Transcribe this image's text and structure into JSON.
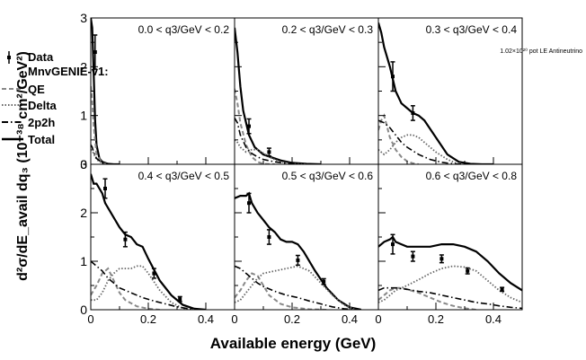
{
  "figure": {
    "ylabel": "d²σ/dE_avail dq₃ (10⁻³⁸ cm²/GeV²)",
    "xlabel": "Available energy (GeV)",
    "pot_note": "1.02×10²⁰ pot LE Antineutrino"
  },
  "legend": {
    "data": "Data",
    "model": "MnvGENIE-v1:",
    "qe": "QE",
    "delta": "Delta",
    "twop2h": "2p2h",
    "total": "Total"
  },
  "colors": {
    "qe": "#888888",
    "delta": "#666666",
    "twop2h": "#000000",
    "total": "#000000",
    "data": "#000000"
  },
  "chart_data": [
    {
      "type": "line",
      "panel_label": "0.0 < q3/GeV < 0.2",
      "xlim": [
        0,
        0.5
      ],
      "ylim": [
        0,
        3
      ],
      "xticks": [
        "0",
        "0.2",
        "0.4"
      ],
      "yticks": [
        "0",
        "1",
        "2",
        "3"
      ],
      "series": [
        {
          "name": "Total",
          "x": [
            0.0,
            0.005,
            0.01,
            0.015,
            0.02,
            0.03,
            0.04,
            0.06,
            0.08,
            0.1
          ],
          "y": [
            3.0,
            2.8,
            1.9,
            0.9,
            0.4,
            0.12,
            0.05,
            0.01,
            0.0,
            0.0
          ]
        },
        {
          "name": "QE",
          "x": [
            0.0,
            0.005,
            0.01,
            0.02,
            0.04,
            0.06
          ],
          "y": [
            1.6,
            1.3,
            0.8,
            0.2,
            0.02,
            0.0
          ]
        },
        {
          "name": "Delta",
          "x": [
            0.0,
            0.005,
            0.01,
            0.02,
            0.04,
            0.06
          ],
          "y": [
            0.3,
            0.28,
            0.22,
            0.1,
            0.02,
            0.0
          ]
        },
        {
          "name": "2p2h",
          "x": [
            0.0,
            0.005,
            0.01,
            0.02,
            0.04,
            0.06
          ],
          "y": [
            0.4,
            0.35,
            0.25,
            0.12,
            0.03,
            0.0
          ]
        }
      ],
      "data_points": {
        "x": [
          0.015
        ],
        "y": [
          2.3
        ],
        "err": [
          0.35
        ]
      }
    },
    {
      "type": "line",
      "panel_label": "0.2 < q3/GeV < 0.3",
      "xlim": [
        0,
        0.5
      ],
      "ylim": [
        0,
        3
      ],
      "xticks": [
        "0",
        "0.2",
        "0.4"
      ],
      "yticks": [],
      "series": [
        {
          "name": "Total",
          "x": [
            0.0,
            0.01,
            0.02,
            0.03,
            0.05,
            0.07,
            0.1,
            0.13,
            0.16,
            0.2,
            0.25,
            0.3
          ],
          "y": [
            2.8,
            2.3,
            1.6,
            1.1,
            0.6,
            0.35,
            0.2,
            0.14,
            0.08,
            0.03,
            0.01,
            0.0
          ]
        },
        {
          "name": "QE",
          "x": [
            0.0,
            0.01,
            0.02,
            0.04,
            0.06,
            0.08,
            0.1,
            0.14
          ],
          "y": [
            1.55,
            1.25,
            0.85,
            0.4,
            0.15,
            0.05,
            0.01,
            0.0
          ]
        },
        {
          "name": "Delta",
          "x": [
            0.0,
            0.01,
            0.02,
            0.04,
            0.06,
            0.08,
            0.1,
            0.13,
            0.16,
            0.2,
            0.25
          ],
          "y": [
            0.5,
            0.45,
            0.35,
            0.25,
            0.3,
            0.3,
            0.23,
            0.12,
            0.05,
            0.01,
            0.0
          ]
        },
        {
          "name": "2p2h",
          "x": [
            0.0,
            0.01,
            0.02,
            0.04,
            0.06,
            0.08,
            0.1,
            0.14,
            0.18,
            0.22
          ],
          "y": [
            0.95,
            0.85,
            0.6,
            0.35,
            0.22,
            0.15,
            0.1,
            0.05,
            0.02,
            0.0
          ]
        }
      ],
      "data_points": {
        "x": [
          0.05,
          0.12
        ],
        "y": [
          0.78,
          0.25
        ],
        "err": [
          0.15,
          0.08
        ]
      }
    },
    {
      "type": "line",
      "panel_label": "0.3 < q3/GeV < 0.4",
      "xlim": [
        0,
        0.5
      ],
      "ylim": [
        0,
        3
      ],
      "xticks": [
        "0",
        "0.2",
        "0.4"
      ],
      "yticks": [],
      "series": [
        {
          "name": "Total",
          "x": [
            0.0,
            0.01,
            0.02,
            0.04,
            0.06,
            0.08,
            0.1,
            0.12,
            0.14,
            0.16,
            0.2,
            0.24,
            0.28,
            0.32,
            0.36,
            0.4
          ],
          "y": [
            2.9,
            2.7,
            2.4,
            2.0,
            1.5,
            1.25,
            1.15,
            1.05,
            1.0,
            0.9,
            0.55,
            0.2,
            0.05,
            0.01,
            0.0,
            0.0
          ]
        },
        {
          "name": "QE",
          "x": [
            0.0,
            0.01,
            0.02,
            0.04,
            0.06,
            0.08,
            0.1,
            0.12,
            0.14
          ],
          "y": [
            0.7,
            0.9,
            1.0,
            0.55,
            0.3,
            0.15,
            0.06,
            0.02,
            0.0
          ]
        },
        {
          "name": "Delta",
          "x": [
            0.0,
            0.01,
            0.02,
            0.04,
            0.06,
            0.08,
            0.1,
            0.12,
            0.14,
            0.16,
            0.2,
            0.24,
            0.28
          ],
          "y": [
            0.3,
            0.25,
            0.2,
            0.3,
            0.45,
            0.55,
            0.6,
            0.6,
            0.55,
            0.45,
            0.25,
            0.1,
            0.0
          ]
        },
        {
          "name": "2p2h",
          "x": [
            0.0,
            0.02,
            0.04,
            0.06,
            0.08,
            0.1,
            0.14,
            0.18,
            0.22,
            0.26,
            0.3
          ],
          "y": [
            0.9,
            0.85,
            0.75,
            0.6,
            0.45,
            0.35,
            0.2,
            0.1,
            0.04,
            0.01,
            0.0
          ]
        }
      ],
      "data_points": {
        "x": [
          0.05,
          0.12
        ],
        "y": [
          1.8,
          1.05
        ],
        "err": [
          0.3,
          0.15
        ]
      }
    },
    {
      "type": "line",
      "panel_label": "0.4 < q3/GeV < 0.5",
      "xlim": [
        0,
        0.5
      ],
      "ylim": [
        0,
        3
      ],
      "xticks": [
        "0",
        "0.2",
        "0.4"
      ],
      "yticks": [
        "0",
        "1",
        "2",
        "3"
      ],
      "series": [
        {
          "name": "Total",
          "x": [
            0.0,
            0.01,
            0.02,
            0.03,
            0.04,
            0.05,
            0.06,
            0.08,
            0.1,
            0.12,
            0.14,
            0.16,
            0.18,
            0.2,
            0.24,
            0.28,
            0.32,
            0.36,
            0.4
          ],
          "y": [
            2.8,
            2.6,
            2.6,
            2.5,
            2.4,
            2.2,
            2.1,
            1.9,
            1.7,
            1.55,
            1.5,
            1.35,
            1.3,
            1.05,
            0.6,
            0.3,
            0.1,
            0.02,
            0.0
          ]
        },
        {
          "name": "QE",
          "x": [
            0.0,
            0.02,
            0.04,
            0.06,
            0.08,
            0.1,
            0.12,
            0.16,
            0.2,
            0.24
          ],
          "y": [
            0.3,
            0.5,
            0.75,
            0.85,
            0.6,
            0.35,
            0.2,
            0.07,
            0.02,
            0.0
          ]
        },
        {
          "name": "Delta",
          "x": [
            0.0,
            0.02,
            0.04,
            0.06,
            0.08,
            0.1,
            0.12,
            0.14,
            0.16,
            0.18,
            0.2,
            0.24,
            0.28,
            0.32,
            0.36
          ],
          "y": [
            0.2,
            0.2,
            0.35,
            0.6,
            0.75,
            0.85,
            0.85,
            0.85,
            0.9,
            0.9,
            0.75,
            0.4,
            0.15,
            0.03,
            0.0
          ]
        },
        {
          "name": "2p2h",
          "x": [
            0.0,
            0.02,
            0.04,
            0.06,
            0.08,
            0.1,
            0.14,
            0.18,
            0.22,
            0.26,
            0.3,
            0.34,
            0.38
          ],
          "y": [
            1.0,
            0.9,
            0.8,
            0.65,
            0.55,
            0.45,
            0.35,
            0.25,
            0.18,
            0.12,
            0.06,
            0.02,
            0.0
          ]
        }
      ],
      "data_points": {
        "x": [
          0.05,
          0.12,
          0.22,
          0.31
        ],
        "y": [
          2.5,
          1.45,
          0.75,
          0.22
        ],
        "err": [
          0.2,
          0.15,
          0.1,
          0.05
        ]
      }
    },
    {
      "type": "line",
      "panel_label": "0.5 < q3/GeV < 0.6",
      "xlim": [
        0,
        0.5
      ],
      "ylim": [
        0,
        3
      ],
      "xticks": [
        "0",
        "0.2",
        "0.4"
      ],
      "yticks": [],
      "series": [
        {
          "name": "Total",
          "x": [
            0.0,
            0.02,
            0.04,
            0.05,
            0.06,
            0.08,
            0.1,
            0.12,
            0.14,
            0.16,
            0.18,
            0.2,
            0.22,
            0.24,
            0.28,
            0.32,
            0.36,
            0.4,
            0.44
          ],
          "y": [
            2.3,
            2.35,
            2.35,
            2.4,
            2.2,
            2.0,
            1.85,
            1.7,
            1.6,
            1.45,
            1.4,
            1.4,
            1.35,
            1.2,
            0.8,
            0.45,
            0.2,
            0.05,
            0.0
          ]
        },
        {
          "name": "QE",
          "x": [
            0.0,
            0.02,
            0.04,
            0.06,
            0.08,
            0.1,
            0.12,
            0.16,
            0.2,
            0.26,
            0.32
          ],
          "y": [
            0.25,
            0.4,
            0.6,
            0.75,
            0.7,
            0.5,
            0.3,
            0.12,
            0.05,
            0.01,
            0.0
          ]
        },
        {
          "name": "Delta",
          "x": [
            0.0,
            0.02,
            0.04,
            0.06,
            0.08,
            0.1,
            0.14,
            0.18,
            0.22,
            0.26,
            0.3,
            0.34,
            0.38,
            0.42
          ],
          "y": [
            0.15,
            0.2,
            0.35,
            0.5,
            0.65,
            0.75,
            0.8,
            0.85,
            0.9,
            0.8,
            0.55,
            0.3,
            0.1,
            0.0
          ]
        },
        {
          "name": "2p2h",
          "x": [
            0.0,
            0.02,
            0.04,
            0.06,
            0.08,
            0.1,
            0.14,
            0.18,
            0.22,
            0.26,
            0.3,
            0.34,
            0.38,
            0.42
          ],
          "y": [
            0.9,
            0.85,
            0.75,
            0.65,
            0.55,
            0.48,
            0.38,
            0.3,
            0.25,
            0.18,
            0.12,
            0.06,
            0.02,
            0.0
          ]
        }
      ],
      "data_points": {
        "x": [
          0.05,
          0.12,
          0.22,
          0.31
        ],
        "y": [
          2.2,
          1.5,
          1.02,
          0.58
        ],
        "err": [
          0.2,
          0.15,
          0.1,
          0.06
        ]
      }
    },
    {
      "type": "line",
      "panel_label": "0.6 < q3/GeV < 0.8",
      "xlim": [
        0,
        0.5
      ],
      "ylim": [
        0,
        3
      ],
      "xticks": [
        "0",
        "0.2",
        "0.4"
      ],
      "yticks": [],
      "series": [
        {
          "name": "Total",
          "x": [
            0.0,
            0.02,
            0.04,
            0.05,
            0.06,
            0.08,
            0.1,
            0.14,
            0.18,
            0.22,
            0.26,
            0.3,
            0.34,
            0.38,
            0.42,
            0.46,
            0.5
          ],
          "y": [
            1.3,
            1.4,
            1.45,
            1.5,
            1.4,
            1.35,
            1.3,
            1.3,
            1.3,
            1.35,
            1.35,
            1.3,
            1.2,
            1.0,
            0.75,
            0.55,
            0.4
          ]
        },
        {
          "name": "QE",
          "x": [
            0.0,
            0.02,
            0.04,
            0.06,
            0.08,
            0.1,
            0.14,
            0.18,
            0.22,
            0.26,
            0.3,
            0.34
          ],
          "y": [
            0.2,
            0.3,
            0.4,
            0.45,
            0.45,
            0.42,
            0.35,
            0.25,
            0.15,
            0.08,
            0.03,
            0.0
          ]
        },
        {
          "name": "Delta",
          "x": [
            0.0,
            0.02,
            0.04,
            0.06,
            0.1,
            0.14,
            0.18,
            0.22,
            0.26,
            0.3,
            0.34,
            0.38,
            0.42,
            0.46,
            0.5
          ],
          "y": [
            0.15,
            0.2,
            0.3,
            0.4,
            0.5,
            0.62,
            0.75,
            0.85,
            0.9,
            0.88,
            0.8,
            0.6,
            0.4,
            0.25,
            0.15
          ]
        },
        {
          "name": "2p2h",
          "x": [
            0.0,
            0.02,
            0.04,
            0.06,
            0.1,
            0.14,
            0.18,
            0.22,
            0.26,
            0.3,
            0.34,
            0.38,
            0.42,
            0.46,
            0.5
          ],
          "y": [
            0.4,
            0.45,
            0.45,
            0.45,
            0.42,
            0.38,
            0.35,
            0.3,
            0.25,
            0.2,
            0.15,
            0.12,
            0.08,
            0.05,
            0.03
          ]
        }
      ],
      "data_points": {
        "x": [
          0.05,
          0.12,
          0.22,
          0.31,
          0.43
        ],
        "y": [
          1.35,
          1.1,
          1.05,
          0.8,
          0.42
        ],
        "err": [
          0.2,
          0.1,
          0.08,
          0.06,
          0.04
        ]
      }
    }
  ]
}
